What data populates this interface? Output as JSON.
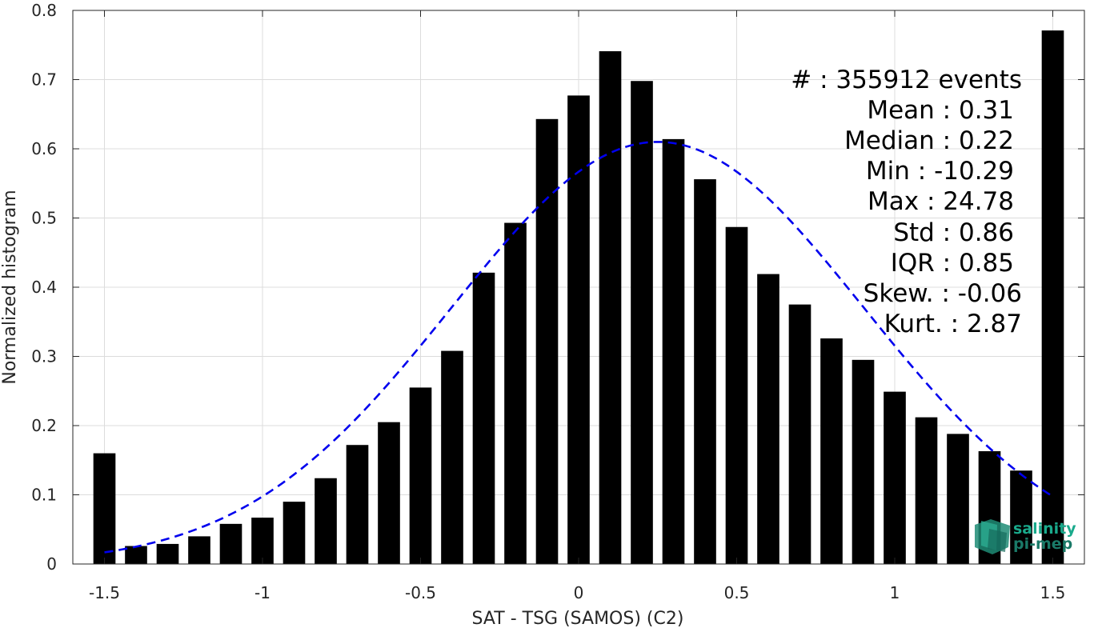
{
  "chart_data": {
    "type": "bar",
    "xlabel": "SAT - TSG (SAMOS) (C2)",
    "ylabel": "Normalized histogram",
    "xlim": [
      -1.6,
      1.6
    ],
    "ylim": [
      0,
      0.8
    ],
    "x_ticks": [
      -1.5,
      -1,
      -0.5,
      0,
      0.5,
      1,
      1.5
    ],
    "x_tick_labels": [
      "-1.5",
      "-1",
      "-0.5",
      "0",
      "0.5",
      "1",
      "1.5"
    ],
    "y_ticks": [
      0,
      0.1,
      0.2,
      0.3,
      0.4,
      0.5,
      0.6,
      0.7,
      0.8
    ],
    "y_tick_labels": [
      "0",
      "0.1",
      "0.2",
      "0.3",
      "0.4",
      "0.5",
      "0.6",
      "0.7",
      "0.8"
    ],
    "grid": true,
    "bar_color": "#000000",
    "x": [
      -1.5,
      -1.4,
      -1.3,
      -1.2,
      -1.1,
      -1.0,
      -0.9,
      -0.8,
      -0.7,
      -0.6,
      -0.5,
      -0.4,
      -0.3,
      -0.2,
      -0.1,
      0.0,
      0.1,
      0.2,
      0.3,
      0.4,
      0.5,
      0.6,
      0.7,
      0.8,
      0.9,
      1.0,
      1.1,
      1.2,
      1.3,
      1.4,
      1.5
    ],
    "values": [
      0.16,
      0.026,
      0.029,
      0.04,
      0.058,
      0.067,
      0.09,
      0.124,
      0.172,
      0.205,
      0.255,
      0.308,
      0.421,
      0.493,
      0.643,
      0.677,
      0.741,
      0.698,
      0.614,
      0.556,
      0.487,
      0.419,
      0.375,
      0.326,
      0.295,
      0.249,
      0.212,
      0.188,
      0.163,
      0.135,
      0.771
    ],
    "fit_curve": {
      "style": "dashed",
      "color": "#0000ee",
      "mean": 0.25,
      "std": 0.653,
      "peak": 0.61,
      "x_range": [
        -1.5,
        1.5
      ]
    },
    "stats": [
      "#   : 355912 events",
      "Mean : 0.31",
      "Median : 0.22",
      "Min : -10.29",
      "Max : 24.78",
      "Std : 0.86",
      "IQR : 0.85",
      "Skew. : -0.06",
      "Kurt. : 2.87"
    ]
  },
  "logo": {
    "line1": "salinity",
    "line2": "pi-mep",
    "color": "#1aaa8c"
  }
}
